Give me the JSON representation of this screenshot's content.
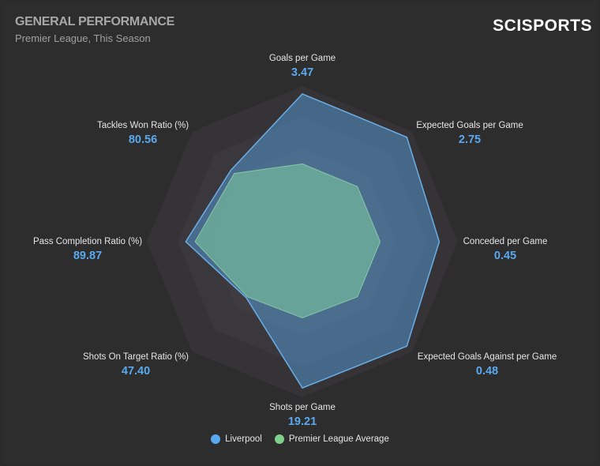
{
  "header": {
    "title": "GENERAL PERFORMANCE",
    "subtitle": "Premier League, This Season",
    "logo": "SCISPORTS"
  },
  "chart_data": {
    "type": "radar",
    "title": "GENERAL PERFORMANCE",
    "subtitle": "Premier League, This Season",
    "scale": "normalized 0-1 per axis",
    "grid_levels": 5,
    "axes": [
      {
        "name": "Goals per Game",
        "value": "3.47"
      },
      {
        "name": "Expected Goals per Game",
        "value": "2.75"
      },
      {
        "name": "Conceded per Game",
        "value": "0.45"
      },
      {
        "name": "Expected Goals Against per Game",
        "value": "0.48"
      },
      {
        "name": "Shots per Game",
        "value": "19.21"
      },
      {
        "name": "Shots On Target Ratio (%)",
        "value": "47.40"
      },
      {
        "name": "Pass Completion Ratio (%)",
        "value": "89.87"
      },
      {
        "name": "Tackles Won Ratio (%)",
        "value": "80.56"
      }
    ],
    "series": [
      {
        "name": "Liverpool",
        "color": "#5aa9ee",
        "values": [
          0.95,
          0.95,
          0.88,
          0.95,
          0.94,
          0.51,
          0.75,
          0.65
        ]
      },
      {
        "name": "Premier League Average",
        "color": "#7fcf8a",
        "values": [
          0.5,
          0.5,
          0.5,
          0.5,
          0.49,
          0.5,
          0.69,
          0.62
        ]
      }
    ],
    "legend_position": "bottom"
  }
}
